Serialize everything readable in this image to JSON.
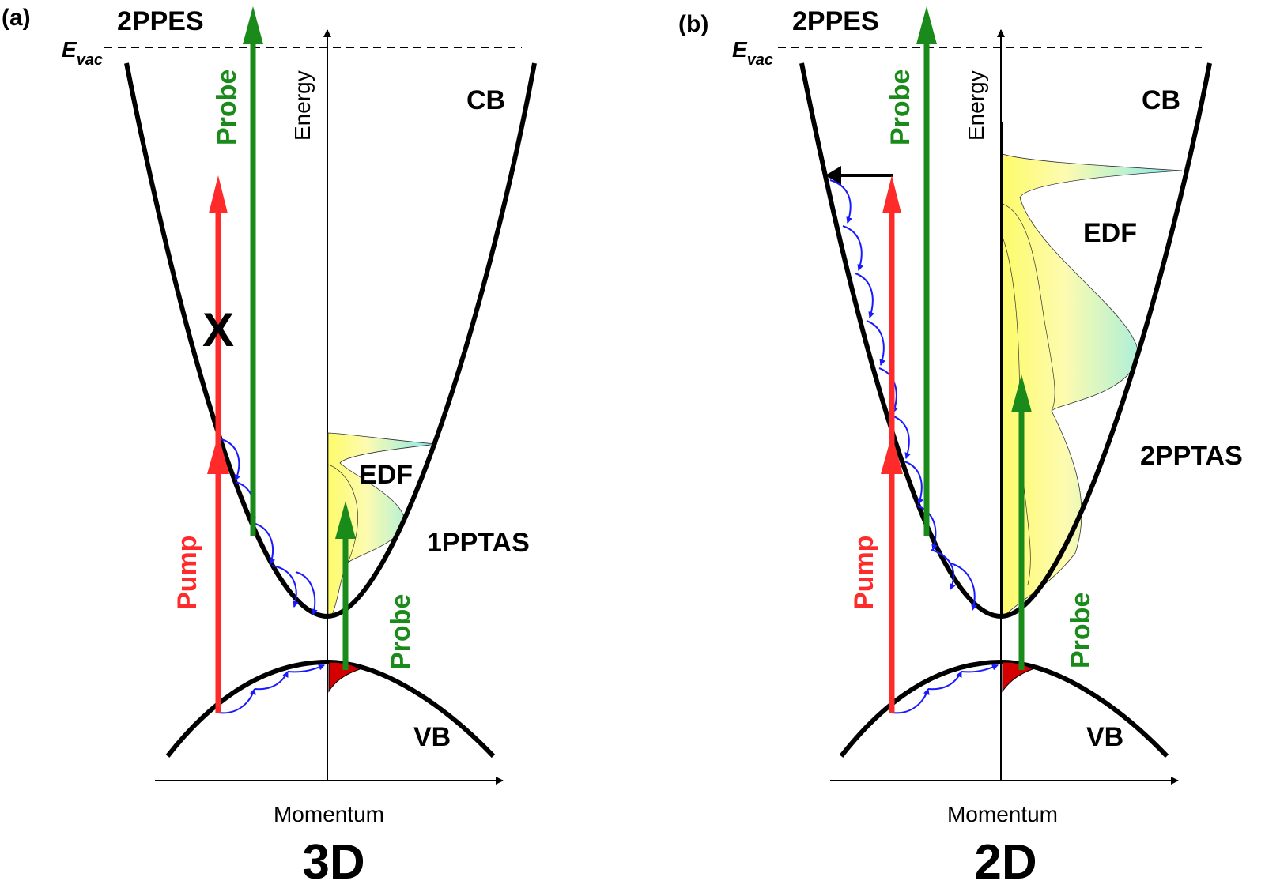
{
  "colors": {
    "pump": "#ff2a2a",
    "probe": "#1a8a1a",
    "scatter": "#1a1aff",
    "band": "#000000",
    "edf_light": "#fdfba0",
    "edf_cyan": "#7fe8f0",
    "hole": "#d40000"
  },
  "panel_a": {
    "tag": "(a)",
    "photoemission": "2PPES",
    "vacuum_prefix": "E",
    "vacuum_sub": "vac",
    "energy_axis": "Energy",
    "momentum_axis": "Momentum",
    "conduction_band": "CB",
    "valence_band": "VB",
    "distribution": "EDF",
    "absorption": "1PPTAS",
    "pump": "Pump",
    "probe_pe": "Probe",
    "probe_abs": "Probe",
    "blocked_mark": "X",
    "dimension": "3D"
  },
  "panel_b": {
    "tag": "(b)",
    "photoemission": "2PPES",
    "vacuum_prefix": "E",
    "vacuum_sub": "vac",
    "energy_axis": "Energy",
    "momentum_axis": "Momentum",
    "conduction_band": "CB",
    "valence_band": "VB",
    "distribution": "EDF",
    "absorption": "2PPTAS",
    "pump": "Pump",
    "probe_pe": "Probe",
    "probe_abs": "Probe",
    "dimension": "2D"
  }
}
